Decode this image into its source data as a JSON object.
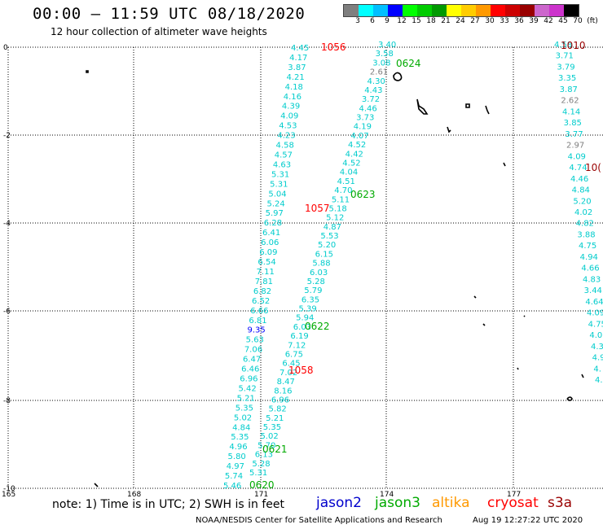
{
  "header": {
    "title": "00:00 – 11:59 UTC 08/18/2020",
    "subtitle": "12 hour collection of altimeter wave heights"
  },
  "colorbar": {
    "swatches": [
      "#7f7f7f",
      "#00ffff",
      "#00bfff",
      "#0000ff",
      "#00ff00",
      "#00cc00",
      "#009900",
      "#ffff00",
      "#ffcc00",
      "#ff9900",
      "#ff0000",
      "#cc0000",
      "#990000",
      "#cc66cc",
      "#cc33cc",
      "#000000"
    ],
    "labels": [
      "3",
      "6",
      "9",
      "12",
      "15",
      "18",
      "21",
      "24",
      "27",
      "30",
      "33",
      "36",
      "39",
      "42",
      "45",
      "70",
      "(ft)"
    ]
  },
  "axes": {
    "x_ticks": [
      "165",
      "168",
      "171",
      "174",
      "177"
    ],
    "y_ticks": [
      "0",
      "-2",
      "-4",
      "-6",
      "-8",
      "-10"
    ]
  },
  "time_labels": [
    {
      "text": "1056",
      "color": "#ff0000"
    },
    {
      "text": "0624",
      "color": "#00aa00"
    },
    {
      "text": "1010",
      "color": "#990000"
    },
    {
      "text": "10(",
      "color": "#990000"
    },
    {
      "text": "0623",
      "color": "#00aa00"
    },
    {
      "text": "1057",
      "color": "#ff0000"
    },
    {
      "text": "0622",
      "color": "#00aa00"
    },
    {
      "text": "1058",
      "color": "#ff0000"
    },
    {
      "text": "0621",
      "color": "#00aa00"
    },
    {
      "text": "0620",
      "color": "#00aa00"
    }
  ],
  "track_a_values": [
    "4.45",
    "4.17",
    "3.87",
    "4.21",
    "4.18",
    "4.16",
    "4.39",
    "4.09",
    "4.53",
    "4.23",
    "4.58",
    "4.57",
    "4.63",
    "5.31",
    "5.31",
    "5.04",
    "5.24",
    "5.97",
    "6.28",
    "6.41",
    "6.06",
    "6.09",
    "6.54",
    "7.11",
    "7.81",
    "6.82",
    "6.52",
    "6.66",
    "6.81",
    "9.35",
    "5.63",
    "7.06",
    "6.47",
    "6.46",
    "6.96",
    "5.42",
    "5.21",
    "5.35",
    "5.02",
    "4.84",
    "5.35",
    "4.96",
    "5.80",
    "4.97",
    "5.74",
    "5.46"
  ],
  "track_b_values": [
    "3.40",
    "3.58",
    "3.08",
    "2.61",
    "4.30",
    "4.43",
    "3.72",
    "4.46",
    "3.73",
    "4.19",
    "4.07",
    "4.52",
    "4.42",
    "4.52",
    "4.04",
    "4.51",
    "4.70",
    "5.11",
    "5.18",
    "5.12",
    "4.87",
    "5.53",
    "5.20",
    "6.15",
    "5.88",
    "6.03",
    "5.28",
    "5.79",
    "6.35",
    "5.39",
    "5.94",
    "6.03",
    "6.19",
    "7.12",
    "6.75",
    "6.45",
    "7.02",
    "8.47",
    "8.16",
    "6.96",
    "5.82",
    "5.21",
    "5.35",
    "5.02",
    "5.70",
    "6.13",
    "5.28",
    "5.31"
  ],
  "track_c_values": [
    "4.58",
    "3.71",
    "3.79",
    "3.35",
    "3.87",
    "2.62",
    "4.14",
    "3.85",
    "3.77",
    "2.97",
    "4.09",
    "4.74",
    "4.46",
    "4.84",
    "5.20",
    "4.02",
    "4.82",
    "3.88",
    "4.75",
    "4.94",
    "4.66",
    "4.83",
    "3.44",
    "4.64",
    "4.09",
    "4.75",
    "4.0",
    "4.3",
    "4.9",
    "4.",
    "4."
  ],
  "footer": {
    "note": "note: 1) Time is in UTC; 2) SWH is in feet",
    "legend": [
      {
        "label": "jason2",
        "color": "#0000cc"
      },
      {
        "label": "jason3",
        "color": "#00aa00"
      },
      {
        "label": "altika",
        "color": "#ff9900"
      },
      {
        "label": "cryosat",
        "color": "#ff0000"
      },
      {
        "label": "s3a",
        "color": "#990000"
      }
    ],
    "credit": "NOAA/NESDIS Center for Satellite Applications and Research",
    "timestamp": "Aug 19 12:27:22 UTC 2020"
  }
}
